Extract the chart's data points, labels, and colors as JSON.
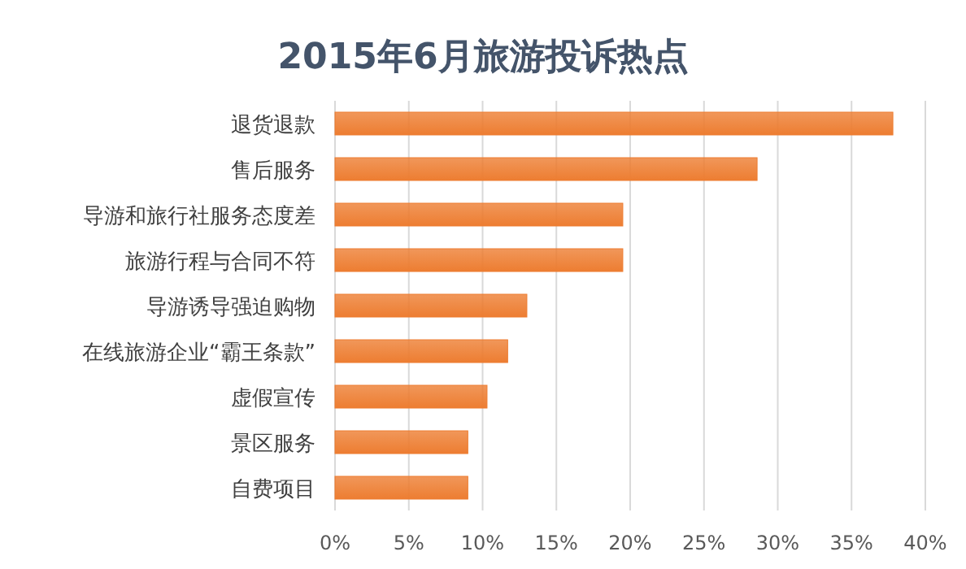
{
  "chart_data": {
    "type": "bar",
    "orientation": "horizontal",
    "title": "2015年6月旅游投诉热点",
    "categories": [
      "退货退款",
      "售后服务",
      "导游和旅行社服务态度差",
      "旅游行程与合同不符",
      "导游诱导强迫购物",
      "在线旅游企业“霸王条款”",
      "虚假宣传",
      "景区服务",
      "自费项目"
    ],
    "values": [
      37.8,
      28.6,
      19.5,
      19.5,
      13.0,
      11.7,
      10.3,
      9.0,
      9.0
    ],
    "color": "#ed7d31",
    "xlim": [
      0,
      40
    ],
    "xticks": [
      {
        "value": 0,
        "label": "0%"
      },
      {
        "value": 5,
        "label": "5%"
      },
      {
        "value": 10,
        "label": "10%"
      },
      {
        "value": 15,
        "label": "15%"
      },
      {
        "value": 20,
        "label": "20%"
      },
      {
        "value": 25,
        "label": "25%"
      },
      {
        "value": 30,
        "label": "30%"
      },
      {
        "value": 35,
        "label": "35%"
      },
      {
        "value": 40,
        "label": "40%"
      }
    ],
    "grid": "x"
  }
}
